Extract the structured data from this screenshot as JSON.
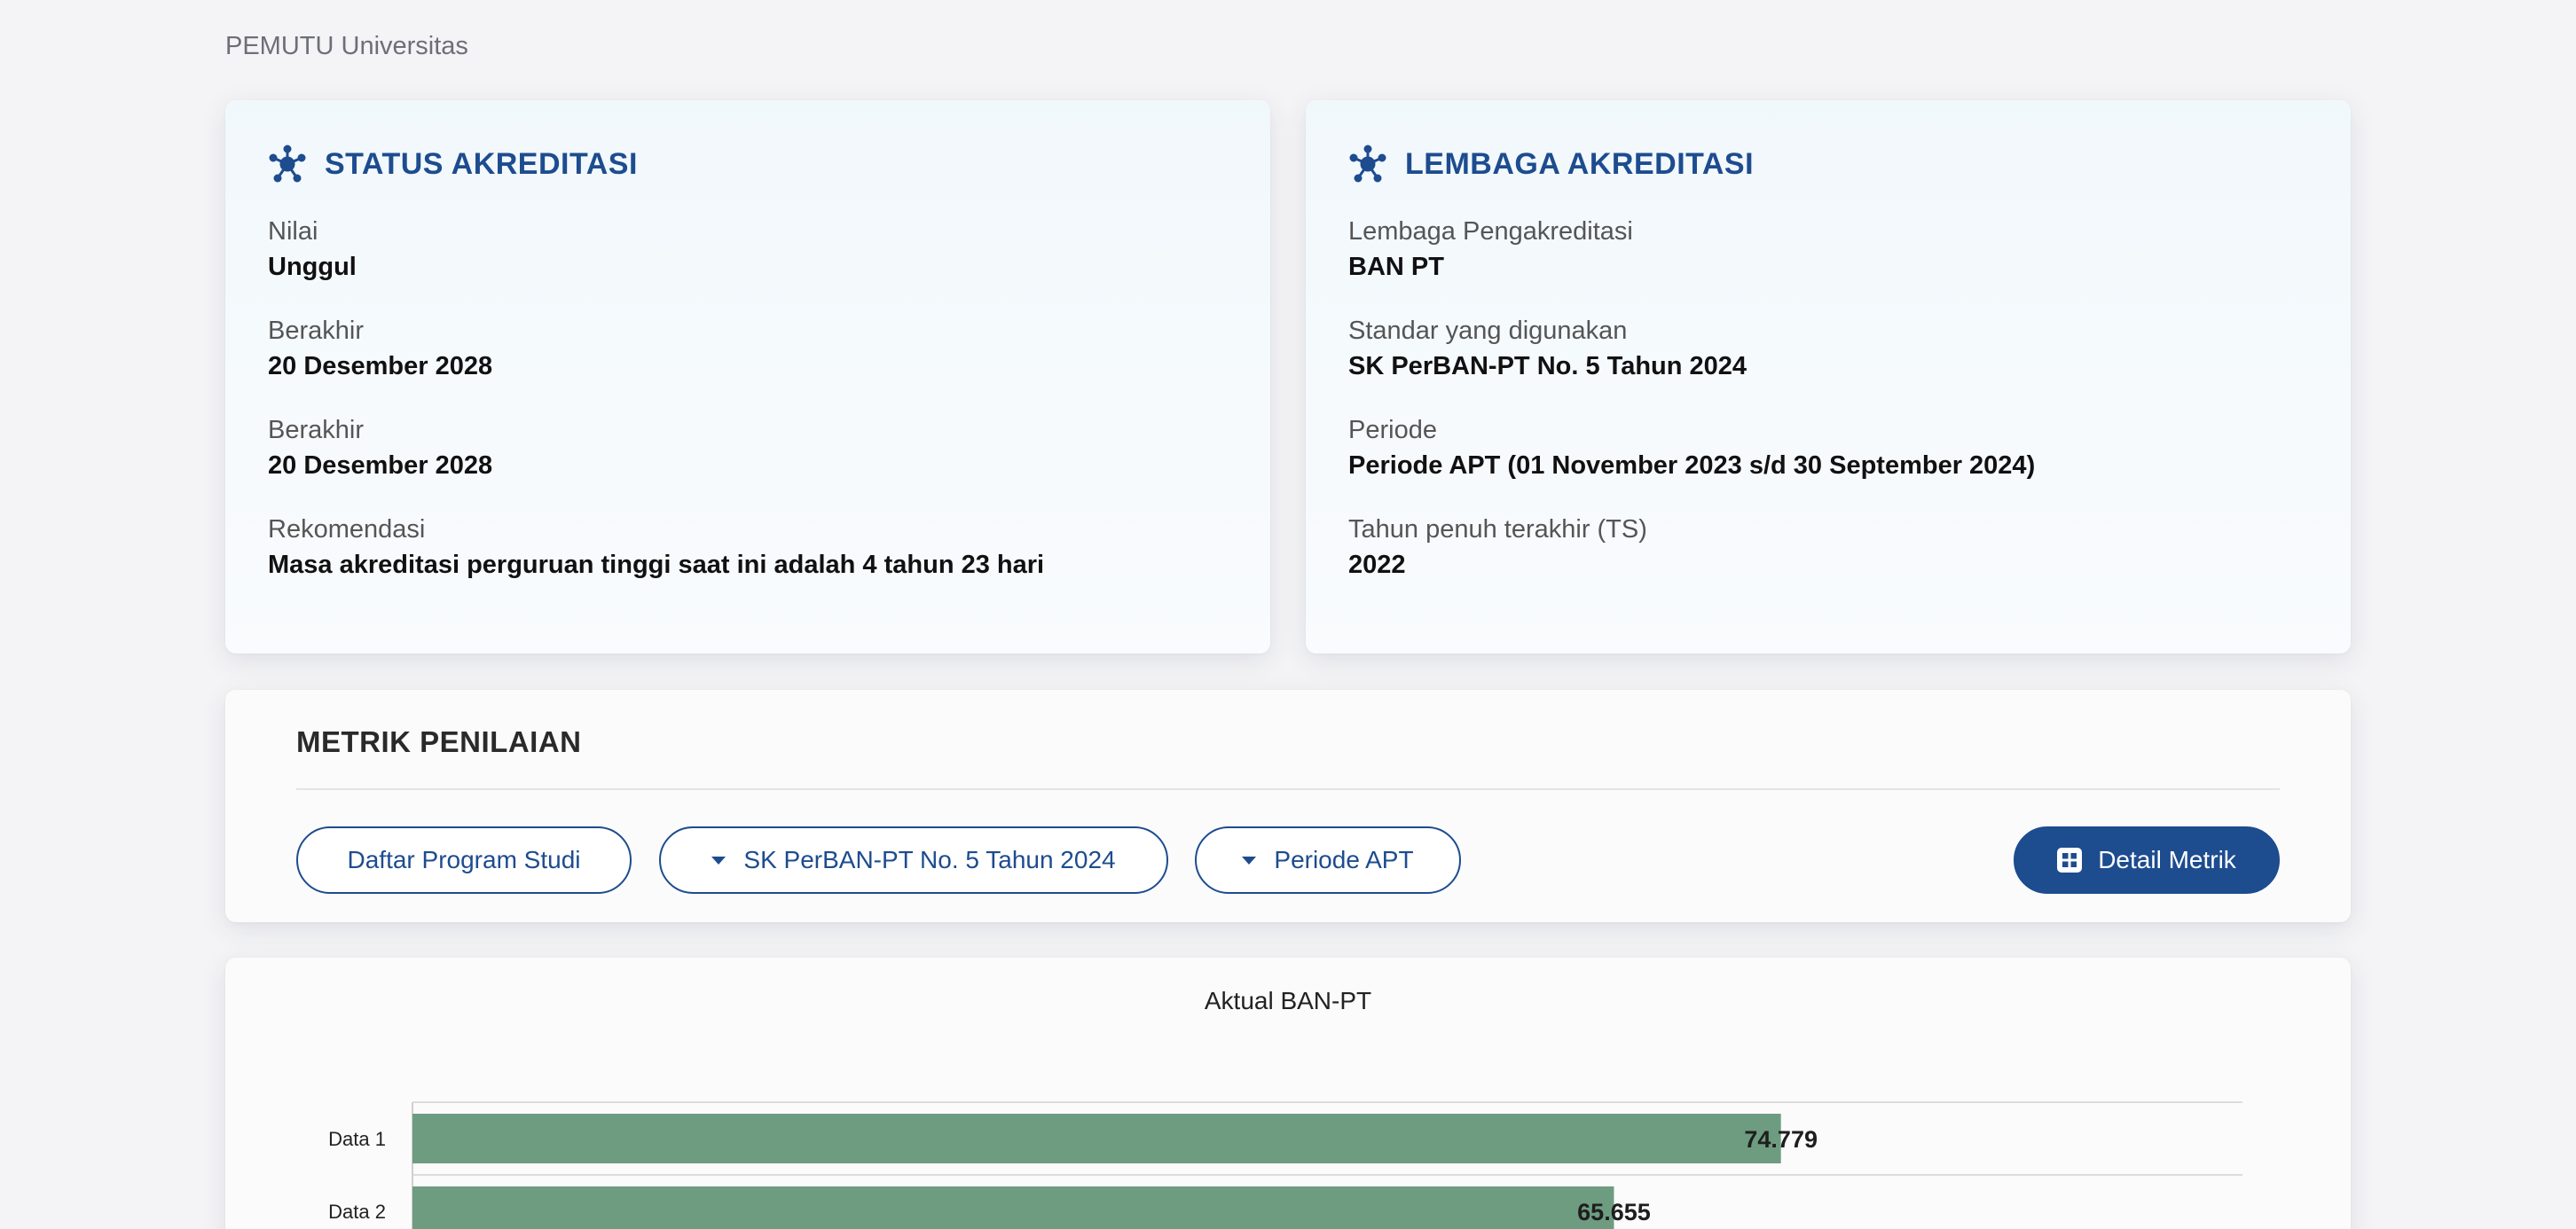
{
  "app": {
    "brand": "PEMUTU Universitas"
  },
  "status_card": {
    "title": "STATUS AKREDITASI",
    "icon": "hub-icon",
    "fields": [
      {
        "label": "Nilai",
        "value": "Unggul"
      },
      {
        "label": "Berakhir",
        "value": "20 Desember 2028"
      },
      {
        "label": "Berakhir",
        "value": "20 Desember 2028"
      },
      {
        "label": "Rekomendasi",
        "value": "Masa akreditasi perguruan tinggi saat ini adalah 4 tahun 23 hari"
      }
    ]
  },
  "lembaga_card": {
    "title": "LEMBAGA AKREDITASI",
    "icon": "hub-icon",
    "fields": [
      {
        "label": "Lembaga Pengakreditasi",
        "value": "BAN PT"
      },
      {
        "label": "Standar yang digunakan",
        "value": "SK PerBAN-PT No. 5 Tahun 2024"
      },
      {
        "label": "Periode",
        "value": "Periode APT (01 November 2023 s/d 30 September 2024)"
      },
      {
        "label": "Tahun penuh terakhir (TS)",
        "value": "2022"
      }
    ]
  },
  "metrik": {
    "title": "METRIK PENILAIAN",
    "buttons": {
      "prodi": "Daftar Program Studi",
      "standar": "SK PerBAN-PT No. 5 Tahun 2024",
      "periode": "Periode APT",
      "detail": "Detail Metrik"
    }
  },
  "colors": {
    "accent": "#1d4c8f",
    "bar": "#6e9c80"
  },
  "chart_data": {
    "type": "bar",
    "orientation": "horizontal",
    "title": "Aktual BAN-PT",
    "categories": [
      "Data 1",
      "Data 2"
    ],
    "values": [
      74.779,
      65.655
    ],
    "value_labels": [
      "74.779",
      "65.655"
    ],
    "xlim": [
      0,
      100
    ],
    "grid": true
  }
}
